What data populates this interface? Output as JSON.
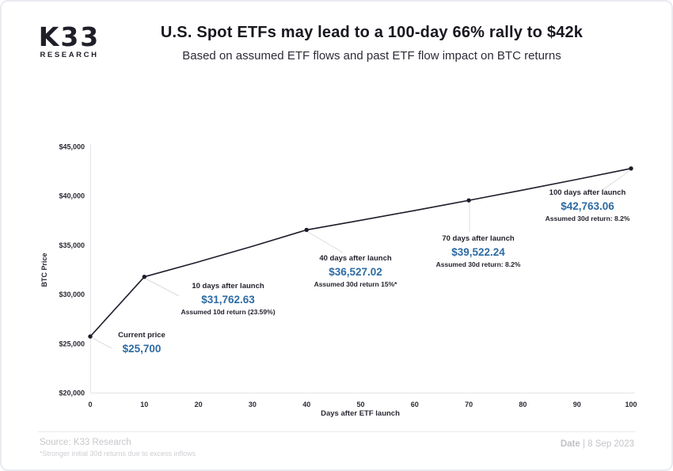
{
  "header": {
    "logo_line1": "K33",
    "logo_line2": "RESEARCH",
    "title": "U.S. Spot ETFs may lead to a 100-day 66% rally to $42k",
    "subtitle": "Based on assumed ETF flows and past ETF flow impact on BTC returns"
  },
  "chart_data": {
    "type": "line",
    "xlabel": "Days after ETF launch",
    "ylabel": "BTC Price",
    "xlim": [
      0,
      100
    ],
    "ylim": [
      20000,
      45000
    ],
    "x_ticks": [
      0,
      10,
      20,
      30,
      40,
      50,
      60,
      70,
      80,
      90,
      100
    ],
    "x_tick_labels": [
      "0",
      "10",
      "20",
      "30",
      "40",
      "50",
      "60",
      "70",
      "80",
      "90",
      "100"
    ],
    "y_ticks": [
      20000,
      25000,
      30000,
      35000,
      40000,
      45000
    ],
    "y_tick_labels": [
      "$20,000",
      "$25,000",
      "$30,000",
      "$35,000",
      "$40,000",
      "$45,000"
    ],
    "grid": false,
    "line_x": [
      0,
      10,
      20,
      30,
      40,
      50,
      60,
      70,
      80,
      90,
      100
    ],
    "line_y": [
      25700,
      31762.63,
      33277,
      34864,
      36527.02,
      37498,
      38495,
      39522.24,
      40573,
      41652,
      42763.06
    ],
    "marker_x": [
      0,
      10,
      40,
      70,
      100
    ],
    "marker_y": [
      25700,
      31762.63,
      36527.02,
      39522.24,
      42763.06
    ],
    "line_color": "#1d1d2b",
    "marker_color": "#1d1d2b",
    "value_color": "#2d6ba3",
    "annotations": [
      {
        "label": "Current price",
        "value": "$25,700",
        "note": ""
      },
      {
        "label": "10 days after launch",
        "value": "$31,762.63",
        "note": "Assumed 10d return (23.59%)"
      },
      {
        "label": "40 days after launch",
        "value": "$36,527.02",
        "note": "Assumed 30d return 15%*"
      },
      {
        "label": "70 days after launch",
        "value": "$39,522.24",
        "note": "Assumed 30d return: 8.2%"
      },
      {
        "label": "100 days after launch",
        "value": "$42,763.06",
        "note": "Assumed 30d return: 8.2%"
      }
    ]
  },
  "footer": {
    "source": "Source: K33 Research",
    "footnote": "*Stronger initial 30d returns due to excess inflows",
    "date_label": "Date",
    "separator": "|",
    "date_value": "8 Sep 2023"
  }
}
